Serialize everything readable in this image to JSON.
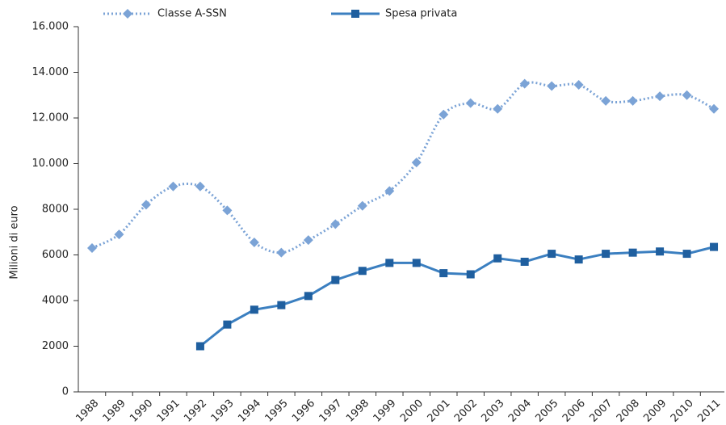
{
  "chart_data": {
    "type": "line",
    "y_label": "Milioni di euro",
    "categories": [
      "1988",
      "1989",
      "1990",
      "1991",
      "1992",
      "1993",
      "1994",
      "1995",
      "1996",
      "1997",
      "1998",
      "1999",
      "2000",
      "2001",
      "2002",
      "2003",
      "2004",
      "2005",
      "2006",
      "2007",
      "2008",
      "2009",
      "2010",
      "2011"
    ],
    "series": [
      {
        "name": "Classe A-SSN",
        "color": "#7ba3d6",
        "marker": "diamond",
        "style": "dotted",
        "values": [
          6300,
          6900,
          8200,
          9000,
          9000,
          7950,
          6550,
          6100,
          6650,
          7350,
          8150,
          8800,
          10050,
          12150,
          12650,
          12400,
          13500,
          13400,
          13450,
          12750,
          12750,
          12950,
          13000,
          12400
        ]
      },
      {
        "name": "Spesa privata",
        "color": "#3b7fc0",
        "marker": "square",
        "style": "solid",
        "values": [
          null,
          null,
          null,
          null,
          2000,
          2950,
          3600,
          3800,
          4200,
          4900,
          5300,
          5650,
          5650,
          5200,
          5150,
          5850,
          5700,
          6050,
          5800,
          6050,
          6100,
          6150,
          6050,
          6350
        ]
      }
    ],
    "ylim": [
      0,
      16000
    ],
    "yticks": [
      0,
      2000,
      4000,
      6000,
      8000,
      {
        "value": 10000,
        "label": "10.000"
      },
      {
        "value": 12000,
        "label": "12.000"
      },
      {
        "value": 14000,
        "label": "14.000"
      },
      {
        "value": 16000,
        "label": "16.000"
      }
    ],
    "legend": "top"
  }
}
